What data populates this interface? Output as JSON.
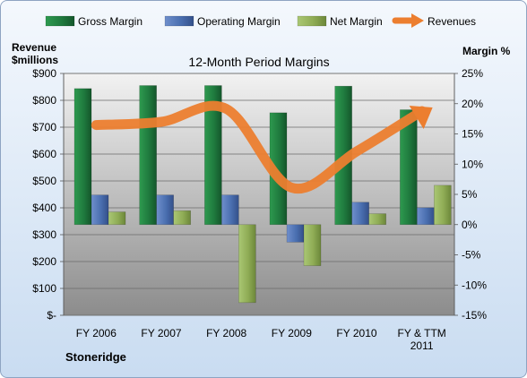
{
  "chart_data": {
    "type": "bar",
    "title": "12-Month Period Margins",
    "left_axis_title": [
      "Revenue",
      "$millions"
    ],
    "right_axis_title": "Margin %",
    "company": "Stoneridge",
    "categories": [
      [
        "FY 2006"
      ],
      [
        "FY 2007"
      ],
      [
        "FY 2008"
      ],
      [
        "FY 2009"
      ],
      [
        "FY 2010"
      ],
      [
        "FY & TTM",
        "2011"
      ]
    ],
    "left_axis": {
      "min": 0,
      "max": 900,
      "step": 100,
      "tick_labels": [
        "$-",
        "$100",
        "$200",
        "$300",
        "$400",
        "$500",
        "$600",
        "$700",
        "$800",
        "$900"
      ]
    },
    "right_axis": {
      "min": -15,
      "max": 25,
      "step": 5,
      "tick_labels": [
        "-15%",
        "-10%",
        "-5%",
        "0%",
        "5%",
        "10%",
        "15%",
        "20%",
        "25%"
      ]
    },
    "grid": true,
    "legend_position": "top",
    "series": [
      {
        "name": "Gross Margin",
        "kind": "bar",
        "axis": "right",
        "color": "#1f7a3e",
        "values": [
          22.5,
          23.0,
          23.0,
          18.5,
          22.9,
          19.0
        ]
      },
      {
        "name": "Operating Margin",
        "kind": "bar",
        "axis": "right",
        "color": "#4a6fb0",
        "values": [
          4.9,
          4.9,
          4.9,
          -2.9,
          3.7,
          2.8
        ]
      },
      {
        "name": "Net Margin",
        "kind": "bar",
        "axis": "right",
        "color": "#8fac55",
        "values": [
          2.1,
          2.3,
          -12.9,
          -6.8,
          1.8,
          6.5
        ]
      },
      {
        "name": "Revenues",
        "kind": "line",
        "axis": "left",
        "color": "#ec7e2f",
        "values": [
          708,
          720,
          768,
          475,
          610,
          760
        ]
      }
    ]
  }
}
